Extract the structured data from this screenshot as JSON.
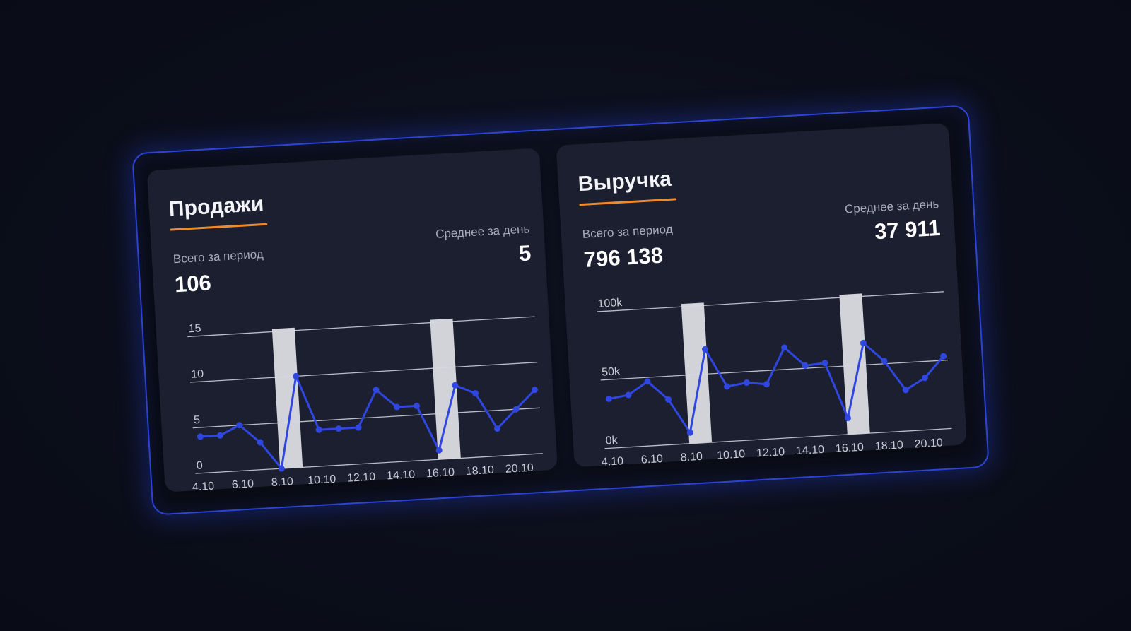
{
  "sales": {
    "title": "Продажи",
    "total_label": "Всего за период",
    "total_value": "106",
    "avg_label": "Среднее за день",
    "avg_value": "5"
  },
  "revenue": {
    "title": "Выручка",
    "total_label": "Всего за период",
    "total_value": "796 138",
    "avg_label": "Среднее за день",
    "avg_value": "37 911"
  },
  "colors": {
    "background": "#0b0e1a",
    "card": "#1b1f2f",
    "frame_glow": "#2d44d6",
    "series": "#2f47e0",
    "accent_underline": "#f0892a",
    "highlight_band": "#e2e3e8"
  },
  "chart_data": [
    {
      "type": "line",
      "x": [
        "4.10",
        "5.10",
        "6.10",
        "7.10",
        "8.10",
        "9.10",
        "10.10",
        "11.10",
        "12.10",
        "13.10",
        "14.10",
        "15.10",
        "16.10",
        "17.10",
        "18.10",
        "19.10",
        "20.10",
        "21.10"
      ],
      "x_tick_labels": [
        "4.10",
        "6.10",
        "8.10",
        "10.10",
        "12.10",
        "14.10",
        "16.10",
        "18.10",
        "20.10"
      ],
      "series": [
        {
          "values": [
            4,
            4,
            5,
            3,
            0,
            10,
            4,
            4,
            4,
            8,
            6,
            6,
            1,
            8,
            7,
            3,
            5,
            7
          ]
        }
      ],
      "y_ticks": [
        "0",
        "5",
        "10",
        "15"
      ],
      "ylim": [
        0,
        15
      ],
      "highlight_ranges": [
        [
          "8.10",
          "9.10"
        ],
        [
          "16.10",
          "17.10"
        ]
      ],
      "grid": true
    },
    {
      "type": "line",
      "x": [
        "4.10",
        "5.10",
        "6.10",
        "7.10",
        "8.10",
        "9.10",
        "10.10",
        "11.10",
        "12.10",
        "13.10",
        "14.10",
        "15.10",
        "16.10",
        "17.10",
        "18.10",
        "19.10",
        "20.10",
        "21.10"
      ],
      "x_tick_labels": [
        "4.10",
        "6.10",
        "8.10",
        "10.10",
        "12.10",
        "14.10",
        "16.10",
        "18.10",
        "20.10"
      ],
      "series": [
        {
          "values": [
            36000,
            38000,
            47000,
            33000,
            8000,
            68000,
            40000,
            42000,
            40000,
            66000,
            52000,
            53000,
            12000,
            66000,
            52000,
            30000,
            38000,
            53000
          ]
        }
      ],
      "y_ticks": [
        "0k",
        "50k",
        "100k"
      ],
      "ylim": [
        0,
        100000
      ],
      "highlight_ranges": [
        [
          "8.10",
          "9.10"
        ],
        [
          "16.10",
          "17.10"
        ]
      ],
      "grid": true
    }
  ]
}
